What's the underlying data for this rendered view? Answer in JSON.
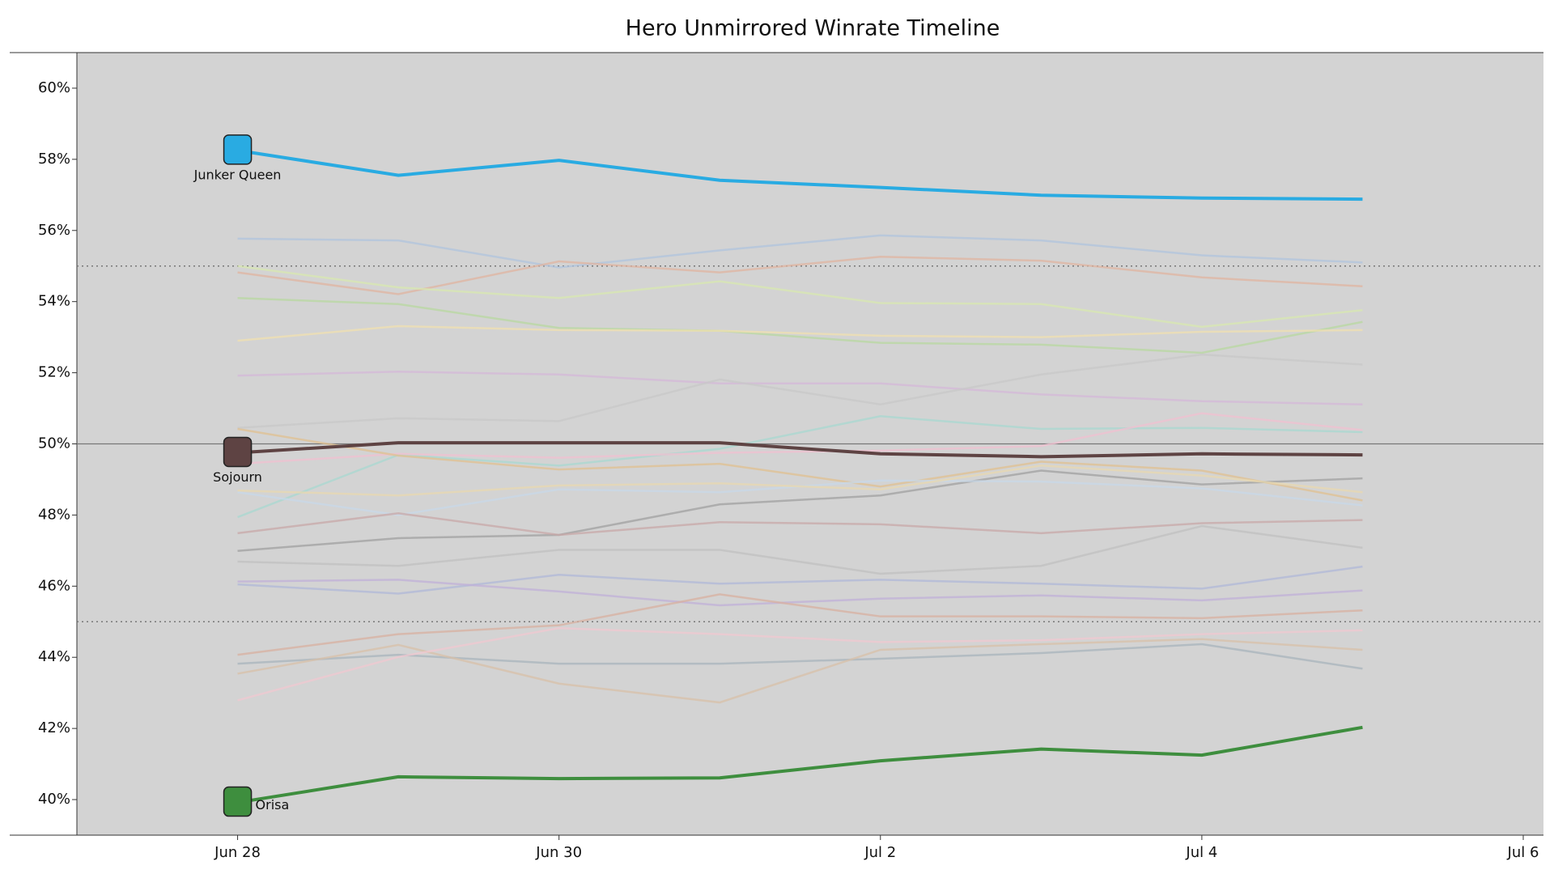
{
  "chart_data": {
    "type": "line",
    "title": "Hero Unmirrored Winrate Timeline",
    "x": [
      "Jun 28",
      "Jun 29",
      "Jun 30",
      "Jul 1",
      "Jul 2",
      "Jul 3",
      "Jul 4",
      "Jul 5"
    ],
    "xlim": [
      "Jun 27",
      "Jul 6"
    ],
    "xticks": [
      "Jun 28",
      "Jun 30",
      "Jul 2",
      "Jul 4",
      "Jul 6"
    ],
    "ylim": [
      39,
      61
    ],
    "yticks": [
      {
        "value": 40,
        "label": "40%"
      },
      {
        "value": 42,
        "label": "42%"
      },
      {
        "value": 44,
        "label": "44%"
      },
      {
        "value": 46,
        "label": "46%"
      },
      {
        "value": 48,
        "label": "48%"
      },
      {
        "value": 50,
        "label": "50%"
      },
      {
        "value": 52,
        "label": "52%"
      },
      {
        "value": 54,
        "label": "54%"
      },
      {
        "value": 56,
        "label": "56%"
      },
      {
        "value": 58,
        "label": "58%"
      },
      {
        "value": 60,
        "label": "60%"
      }
    ],
    "solid_lines": [
      50
    ],
    "dotted_lines": [
      45,
      55
    ],
    "background": "#d3d3d3",
    "series": [
      {
        "color": "#b0c4de",
        "values": [
          55.77,
          55.72,
          54.96,
          55.44,
          55.86,
          55.72,
          55.3,
          55.1
        ]
      },
      {
        "color": "#e0b4a0",
        "values": [
          54.82,
          54.21,
          55.13,
          54.82,
          55.26,
          55.15,
          54.68,
          54.43
        ]
      },
      {
        "color": "#d8e8b0",
        "values": [
          55.0,
          54.4,
          54.1,
          54.57,
          53.96,
          53.93,
          53.29,
          53.76
        ]
      },
      {
        "color": "#b8d8a0",
        "values": [
          54.1,
          53.93,
          53.26,
          53.18,
          52.84,
          52.79,
          52.56,
          53.43
        ]
      },
      {
        "color": "#f0e0b0",
        "values": [
          52.9,
          53.31,
          53.2,
          53.18,
          53.04,
          53.0,
          53.15,
          53.2
        ]
      },
      {
        "color": "#d4b8d8",
        "values": [
          51.92,
          52.03,
          51.95,
          51.7,
          51.7,
          51.39,
          51.2,
          51.11
        ]
      },
      {
        "color": "#c8c8c8",
        "values": [
          50.45,
          50.72,
          50.64,
          51.81,
          51.11,
          51.95,
          52.51,
          52.23
        ]
      },
      {
        "color": "#a8d8d0",
        "values": [
          47.94,
          49.69,
          49.39,
          49.86,
          50.78,
          50.42,
          50.45,
          50.33
        ]
      },
      {
        "color": "#f0c0d0",
        "values": [
          49.44,
          49.72,
          49.61,
          49.75,
          49.81,
          49.94,
          50.86,
          50.39
        ]
      },
      {
        "color": "#e0c090",
        "values": [
          50.42,
          49.67,
          49.28,
          49.44,
          48.8,
          49.5,
          49.25,
          48.41
        ]
      },
      {
        "color": "#a0a0a0",
        "values": [
          46.99,
          47.35,
          47.44,
          48.3,
          48.55,
          49.25,
          48.86,
          49.03
        ]
      },
      {
        "color": "#c8d8e8",
        "values": [
          48.64,
          48.0,
          48.72,
          48.64,
          48.97,
          48.94,
          48.75,
          48.27
        ]
      },
      {
        "color": "#c8a8a8",
        "values": [
          47.49,
          48.05,
          47.44,
          47.8,
          47.74,
          47.49,
          47.77,
          47.86
        ]
      },
      {
        "color": "#c0c0c0",
        "values": [
          46.69,
          46.57,
          47.02,
          47.02,
          46.35,
          46.57,
          47.69,
          47.08
        ]
      },
      {
        "color": "#b0b8d8",
        "values": [
          46.05,
          45.79,
          46.32,
          46.07,
          46.18,
          46.07,
          45.93,
          46.55
        ]
      },
      {
        "color": "#c0b0d8",
        "values": [
          46.13,
          46.18,
          45.85,
          45.46,
          45.65,
          45.74,
          45.6,
          45.88
        ]
      },
      {
        "color": "#d8b0a0",
        "values": [
          44.07,
          44.65,
          44.9,
          45.77,
          45.15,
          45.15,
          45.1,
          45.32
        ]
      },
      {
        "color": "#a8b4bc",
        "values": [
          43.82,
          44.07,
          43.82,
          43.82,
          43.96,
          44.12,
          44.37,
          43.68
        ]
      },
      {
        "color": "#d8c0a8",
        "values": [
          43.54,
          44.35,
          43.26,
          42.73,
          44.21,
          44.37,
          44.51,
          44.21
        ]
      },
      {
        "color": "#f0c8d0",
        "values": [
          42.79,
          44.01,
          44.82,
          44.65,
          44.43,
          44.48,
          44.65,
          44.76
        ]
      },
      {
        "color": "#e8d8b0",
        "values": [
          48.69,
          48.55,
          48.83,
          48.89,
          48.72,
          49.39,
          49.11,
          48.64
        ]
      },
      {
        "name": "Junker Queen",
        "color": "#29abe2",
        "highlight": true,
        "label_position": "below",
        "values": [
          58.25,
          57.55,
          57.97,
          57.41,
          57.21,
          56.99,
          56.91,
          56.88
        ]
      },
      {
        "name": "Sojourn",
        "color": "#5e4343",
        "highlight": true,
        "label_position": "below",
        "values": [
          49.75,
          50.03,
          50.03,
          50.03,
          49.72,
          49.64,
          49.72,
          49.69
        ]
      },
      {
        "name": "Orisa",
        "color": "#3e8e3e",
        "highlight": true,
        "label_position": "right",
        "values": [
          39.92,
          40.64,
          40.59,
          40.61,
          41.09,
          41.42,
          41.25,
          42.03
        ]
      }
    ]
  }
}
